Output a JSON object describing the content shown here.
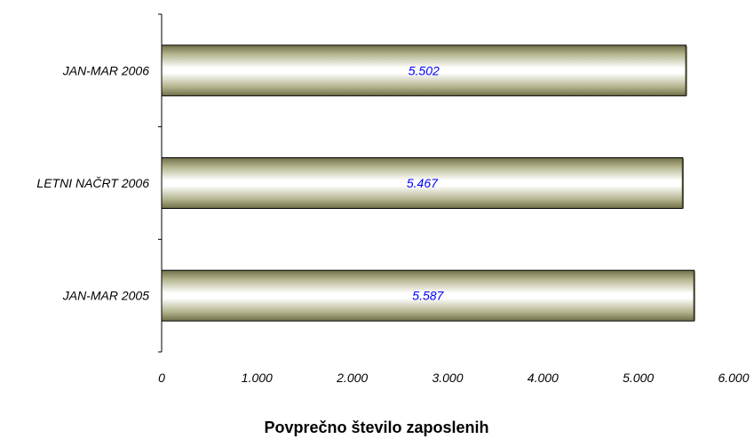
{
  "chart_data": {
    "type": "bar",
    "orientation": "horizontal",
    "title": "Povprečno število zaposlenih",
    "categories": [
      "JAN-MAR 2006",
      "LETNI NAČRT 2006",
      "JAN-MAR 2005"
    ],
    "values": [
      5502,
      5467,
      5587
    ],
    "value_labels": [
      "5.502",
      "5.467",
      "5.587"
    ],
    "xlim": [
      0,
      6000
    ],
    "x_ticks": [
      0,
      1000,
      2000,
      3000,
      4000,
      5000,
      6000
    ],
    "x_tick_labels": [
      "0",
      "1.000",
      "2.000",
      "3.000",
      "4.000",
      "5.000",
      "6.000"
    ],
    "grid": false,
    "legend": "none",
    "colors": {
      "bar_dark": "#7a7a52",
      "bar_mid": "#c9c9a6",
      "bar_light": "#ffffff",
      "bar_border": "#000000",
      "value_label": "#0000ff",
      "axis": "#000000"
    }
  }
}
